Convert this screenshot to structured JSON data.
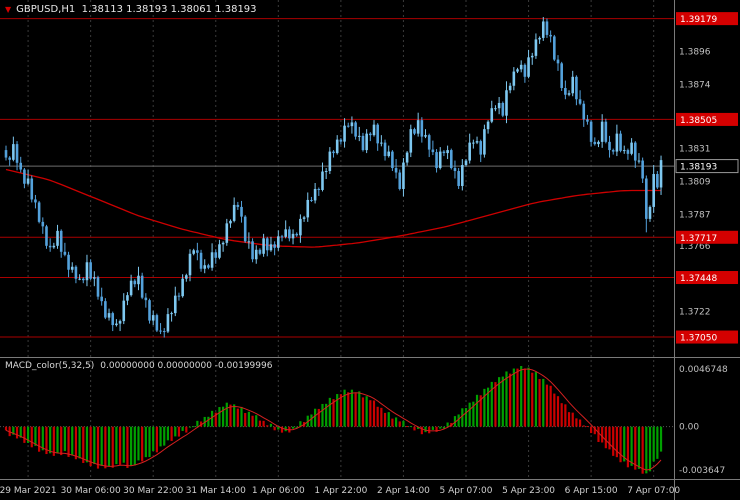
{
  "header": {
    "title": "GBPUSD,H1  1.38113 1.38193 1.38061 1.38193",
    "marker_icon": "▼"
  },
  "macd_panel": {
    "label": "MACD_color(5,32,5)",
    "values": "0.00000000 0.00000000 -0.00199996"
  },
  "colors": {
    "background": "#000000",
    "candle_up": "#7ec8f0",
    "candle_down": "#54a2dc",
    "ma_line": "#cc0000",
    "level_line": "#aa0000",
    "level_badge": "#d40000",
    "badge_text": "#ffffff",
    "axis_text": "#c0c0c0",
    "time_text": "#d0d0d0",
    "grid": "#3a3a3a",
    "separator": "#7a7a7a",
    "macd_up": "#00a000",
    "macd_down": "#cc0000",
    "macd_signal": "#d42020",
    "current_line": "#6e6e6e",
    "current_badge_bg": "#000000",
    "current_badge_border": "#9a9a9a"
  },
  "chart_data": {
    "type": "candlestick",
    "symbol": "GBPUSD",
    "timeframe": "H1",
    "title": "GBPUSD,H1",
    "last_bar": {
      "open": 1.38113,
      "high": 1.38193,
      "low": 1.38061,
      "close": 1.38193
    },
    "n_bars": 179,
    "price_axis": {
      "min": 1.3695,
      "max": 1.3925,
      "tick_labels": [
        1.3896,
        1.3874,
        1.3831,
        1.3809,
        1.3787,
        1.3766,
        1.3722
      ]
    },
    "levels": [
      1.39179,
      1.38505,
      1.37717,
      1.37448,
      1.3705
    ],
    "current_price": 1.38193,
    "x_axis": {
      "labels": [
        "29 Mar 2021",
        "30 Mar 06:00",
        "30 Mar 22:00",
        "31 Mar 14:00",
        "1 Apr 06:00",
        "1 Apr 22:00",
        "2 Apr 14:00",
        "5 Apr 07:00",
        "5 Apr 23:00",
        "6 Apr 15:00",
        "7 Apr 07:00"
      ],
      "label_bars": [
        6,
        23,
        40,
        57,
        74,
        91,
        108,
        125,
        142,
        159,
        176
      ]
    },
    "close_anchors": [
      [
        0,
        1.3823
      ],
      [
        2,
        1.383
      ],
      [
        4,
        1.3815
      ],
      [
        6,
        1.3808
      ],
      [
        8,
        1.379
      ],
      [
        10,
        1.3778
      ],
      [
        12,
        1.3762
      ],
      [
        14,
        1.3772
      ],
      [
        16,
        1.3758
      ],
      [
        18,
        1.3748
      ],
      [
        20,
        1.3742
      ],
      [
        22,
        1.3752
      ],
      [
        24,
        1.374
      ],
      [
        27,
        1.3722
      ],
      [
        30,
        1.371
      ],
      [
        33,
        1.3736
      ],
      [
        36,
        1.3744
      ],
      [
        39,
        1.3718
      ],
      [
        42,
        1.3708
      ],
      [
        45,
        1.3722
      ],
      [
        48,
        1.3742
      ],
      [
        51,
        1.3764
      ],
      [
        54,
        1.375
      ],
      [
        57,
        1.376
      ],
      [
        60,
        1.3778
      ],
      [
        63,
        1.3795
      ],
      [
        65,
        1.3772
      ],
      [
        67,
        1.3758
      ],
      [
        70,
        1.3768
      ],
      [
        72,
        1.3762
      ],
      [
        75,
        1.3776
      ],
      [
        78,
        1.377
      ],
      [
        81,
        1.3788
      ],
      [
        84,
        1.3802
      ],
      [
        87,
        1.3818
      ],
      [
        90,
        1.3836
      ],
      [
        93,
        1.3847
      ],
      [
        95,
        1.3842
      ],
      [
        97,
        1.3833
      ],
      [
        100,
        1.3845
      ],
      [
        102,
        1.3832
      ],
      [
        105,
        1.382
      ],
      [
        107,
        1.3808
      ],
      [
        110,
        1.384
      ],
      [
        112,
        1.3848
      ],
      [
        114,
        1.3836
      ],
      [
        117,
        1.3822
      ],
      [
        119,
        1.383
      ],
      [
        121,
        1.382
      ],
      [
        123,
        1.381
      ],
      [
        125,
        1.3824
      ],
      [
        127,
        1.3838
      ],
      [
        129,
        1.383
      ],
      [
        131,
        1.385
      ],
      [
        133,
        1.3862
      ],
      [
        135,
        1.3855
      ],
      [
        137,
        1.3875
      ],
      [
        139,
        1.3888
      ],
      [
        141,
        1.388
      ],
      [
        143,
        1.3896
      ],
      [
        145,
        1.3908
      ],
      [
        146,
        1.3912
      ],
      [
        148,
        1.3904
      ],
      [
        150,
        1.3885
      ],
      [
        152,
        1.3862
      ],
      [
        154,
        1.3878
      ],
      [
        156,
        1.3858
      ],
      [
        158,
        1.3845
      ],
      [
        160,
        1.3832
      ],
      [
        162,
        1.3845
      ],
      [
        164,
        1.3828
      ],
      [
        166,
        1.3838
      ],
      [
        168,
        1.3825
      ],
      [
        170,
        1.3834
      ],
      [
        172,
        1.382
      ],
      [
        173,
        1.3812
      ],
      [
        174,
        1.378
      ],
      [
        175,
        1.3795
      ],
      [
        176,
        1.3812
      ],
      [
        177,
        1.3808
      ],
      [
        178,
        1.38193
      ]
    ],
    "close_osc": [
      0.0002,
      -0.0003,
      0.0004,
      -0.0001,
      0.0002,
      -0.0004,
      0.0003,
      -0.0002,
      0.0005,
      -0.0002,
      0.0001,
      -0.0004,
      0.0003,
      -0.0001,
      0.0004,
      -0.0003
    ],
    "wick_upper": [
      0.0003,
      0.0001,
      0.0005,
      0.0002,
      0.0004,
      0.0001,
      0.0006,
      0.0002,
      0.0003,
      0.0001
    ],
    "wick_lower": [
      0.0002,
      0.0004,
      0.0001,
      0.0005,
      0.0002,
      0.0003,
      0.0001
    ],
    "wick_overrides": {
      "146": {
        "up": 0.0003,
        "down": 0.0002
      },
      "174": {
        "up": 0.0002,
        "down": 0.0009
      }
    },
    "ma_anchors": [
      [
        0,
        1.3817
      ],
      [
        12,
        1.381
      ],
      [
        24,
        1.3798
      ],
      [
        36,
        1.3786
      ],
      [
        48,
        1.3777
      ],
      [
        60,
        1.377
      ],
      [
        72,
        1.3766
      ],
      [
        84,
        1.3765
      ],
      [
        96,
        1.3768
      ],
      [
        108,
        1.3773
      ],
      [
        120,
        1.3779
      ],
      [
        132,
        1.3787
      ],
      [
        144,
        1.3795
      ],
      [
        156,
        1.38
      ],
      [
        168,
        1.3803
      ],
      [
        178,
        1.3803
      ]
    ],
    "macd": {
      "axis_max": 0.0046748,
      "axis_min": -0.003647,
      "axis_labels": [
        "0.0046748",
        "0.00",
        "-0.003647"
      ],
      "signal_k": 0.35,
      "osc": [
        0.00012,
        -0.00018,
        8e-05,
        -6e-05,
        0.00015,
        -0.0001,
        5e-05,
        -0.00014
      ],
      "anchors": [
        [
          0,
          -0.0004
        ],
        [
          4,
          -0.001
        ],
        [
          8,
          -0.0016
        ],
        [
          12,
          -0.0022
        ],
        [
          16,
          -0.002
        ],
        [
          20,
          -0.0026
        ],
        [
          24,
          -0.003
        ],
        [
          28,
          -0.0032
        ],
        [
          31,
          -0.0028
        ],
        [
          34,
          -0.0031
        ],
        [
          38,
          -0.0024
        ],
        [
          42,
          -0.0016
        ],
        [
          46,
          -0.0008
        ],
        [
          50,
          -0.0001
        ],
        [
          53,
          0.0005
        ],
        [
          56,
          0.0011
        ],
        [
          59,
          0.0016
        ],
        [
          61,
          0.0018
        ],
        [
          64,
          0.0014
        ],
        [
          67,
          0.0009
        ],
        [
          70,
          0.0004
        ],
        [
          72,
          0.0001
        ],
        [
          74,
          -0.0003
        ],
        [
          76,
          -0.0005
        ],
        [
          78,
          -0.0002
        ],
        [
          80,
          0.0003
        ],
        [
          83,
          0.001
        ],
        [
          86,
          0.0017
        ],
        [
          89,
          0.0023
        ],
        [
          92,
          0.0027
        ],
        [
          94,
          0.0028
        ],
        [
          96,
          0.0026
        ],
        [
          99,
          0.0021
        ],
        [
          102,
          0.0014
        ],
        [
          105,
          0.0008
        ],
        [
          108,
          0.0003
        ],
        [
          110,
          0.0
        ],
        [
          112,
          -0.0003
        ],
        [
          114,
          -0.0005
        ],
        [
          116,
          -0.0004
        ],
        [
          118,
          -0.0002
        ],
        [
          120,
          0.0002
        ],
        [
          123,
          0.001
        ],
        [
          126,
          0.0018
        ],
        [
          129,
          0.0026
        ],
        [
          132,
          0.0033
        ],
        [
          135,
          0.004
        ],
        [
          138,
          0.0044
        ],
        [
          140,
          0.00467
        ],
        [
          142,
          0.0045
        ],
        [
          144,
          0.0041
        ],
        [
          146,
          0.0036
        ],
        [
          148,
          0.003
        ],
        [
          150,
          0.0023
        ],
        [
          152,
          0.0016
        ],
        [
          154,
          0.001
        ],
        [
          156,
          0.0004
        ],
        [
          158,
          0.0
        ],
        [
          160,
          -0.0007
        ],
        [
          162,
          -0.0013
        ],
        [
          164,
          -0.0019
        ],
        [
          166,
          -0.0024
        ],
        [
          168,
          -0.0028
        ],
        [
          170,
          -0.0031
        ],
        [
          172,
          -0.0034
        ],
        [
          174,
          -0.003647
        ],
        [
          175,
          -0.0033
        ],
        [
          176,
          -0.0028
        ],
        [
          177,
          -0.0023
        ],
        [
          178,
          -0.002
        ]
      ]
    }
  }
}
